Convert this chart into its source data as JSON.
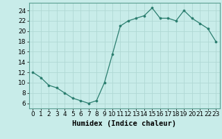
{
  "x": [
    0,
    1,
    2,
    3,
    4,
    5,
    6,
    7,
    8,
    9,
    10,
    11,
    12,
    13,
    14,
    15,
    16,
    17,
    18,
    19,
    20,
    21,
    22,
    23
  ],
  "y": [
    12,
    11,
    9.5,
    9,
    8,
    7,
    6.5,
    6,
    6.5,
    10,
    15.5,
    21,
    22,
    22.5,
    23,
    24.5,
    22.5,
    22.5,
    22,
    24,
    22.5,
    21.5,
    20.5,
    18
  ],
  "line_color": "#2a7d6e",
  "marker_color": "#2a7d6e",
  "bg_color": "#c8ece9",
  "grid_color": "#b0d8d4",
  "xlabel": "Humidex (Indice chaleur)",
  "ylim": [
    5,
    25.5
  ],
  "xlim": [
    -0.5,
    23.5
  ],
  "yticks": [
    6,
    8,
    10,
    12,
    14,
    16,
    18,
    20,
    22,
    24
  ],
  "xticks": [
    0,
    1,
    2,
    3,
    4,
    5,
    6,
    7,
    8,
    9,
    10,
    11,
    12,
    13,
    14,
    15,
    16,
    17,
    18,
    19,
    20,
    21,
    22,
    23
  ],
  "xlabel_fontsize": 7.5,
  "tick_fontsize": 6.5,
  "spine_color": "#5a9e90"
}
